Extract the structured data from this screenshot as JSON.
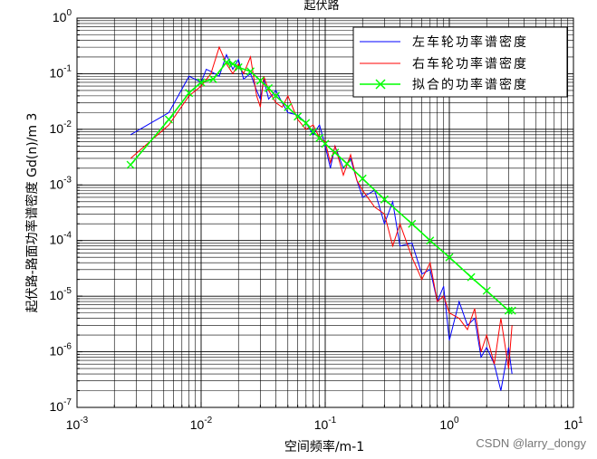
{
  "chart_data": {
    "type": "line",
    "title": "起伏路",
    "xlabel": "空间频率/m-1",
    "ylabel": "起伏路-路面功率谱密度 Gd(n)/m 3",
    "xscale": "log",
    "yscale": "log",
    "xlim": [
      0.001,
      10
    ],
    "ylim": [
      1e-07,
      1
    ],
    "grid": true,
    "legend_position": "top-right",
    "x_tick_labels": [
      {
        "base": "10",
        "exp": "-3"
      },
      {
        "base": "10",
        "exp": "-2"
      },
      {
        "base": "10",
        "exp": "-1"
      },
      {
        "base": "10",
        "exp": "0"
      },
      {
        "base": "10",
        "exp": "1"
      }
    ],
    "y_tick_labels": [
      {
        "base": "10",
        "exp": "0"
      },
      {
        "base": "10",
        "exp": "-1"
      },
      {
        "base": "10",
        "exp": "-2"
      },
      {
        "base": "10",
        "exp": "-3"
      },
      {
        "base": "10",
        "exp": "-4"
      },
      {
        "base": "10",
        "exp": "-5"
      },
      {
        "base": "10",
        "exp": "-6"
      },
      {
        "base": "10",
        "exp": "-7"
      }
    ],
    "series": [
      {
        "name": "左车轮功率谱密度",
        "color": "#0000ff",
        "x": [
          0.0027,
          0.0055,
          0.008,
          0.01,
          0.011,
          0.012,
          0.014,
          0.016,
          0.018,
          0.02,
          0.022,
          0.025,
          0.028,
          0.03,
          0.032,
          0.035,
          0.04,
          0.045,
          0.05,
          0.06,
          0.07,
          0.08,
          0.09,
          0.1,
          0.11,
          0.12,
          0.14,
          0.16,
          0.18,
          0.2,
          0.25,
          0.3,
          0.35,
          0.4,
          0.5,
          0.6,
          0.7,
          0.8,
          0.9,
          1.0,
          1.2,
          1.4,
          1.6,
          1.8,
          2.0,
          2.3,
          2.6,
          3.0,
          3.2
        ],
        "y": [
          0.008,
          0.02,
          0.09,
          0.07,
          0.12,
          0.11,
          0.09,
          0.22,
          0.12,
          0.18,
          0.08,
          0.1,
          0.05,
          0.035,
          0.08,
          0.035,
          0.05,
          0.03,
          0.02,
          0.018,
          0.013,
          0.008,
          0.012,
          0.005,
          0.002,
          0.005,
          0.002,
          0.003,
          0.0012,
          0.0006,
          0.0008,
          0.0002,
          0.0005,
          8e-05,
          9e-05,
          2.5e-05,
          3e-05,
          8e-06,
          1.5e-05,
          1.6e-06,
          8e-06,
          3e-06,
          4e-06,
          8e-07,
          1.2e-06,
          6e-07,
          2e-07,
          1.2e-06,
          4e-07
        ]
      },
      {
        "name": "右车轮功率谱密度",
        "color": "#ff0000",
        "x": [
          0.0027,
          0.0055,
          0.008,
          0.01,
          0.012,
          0.014,
          0.016,
          0.018,
          0.02,
          0.022,
          0.025,
          0.028,
          0.03,
          0.032,
          0.035,
          0.04,
          0.045,
          0.05,
          0.06,
          0.07,
          0.08,
          0.09,
          0.1,
          0.11,
          0.12,
          0.14,
          0.16,
          0.18,
          0.2,
          0.25,
          0.3,
          0.35,
          0.4,
          0.5,
          0.6,
          0.7,
          0.8,
          0.9,
          1.0,
          1.2,
          1.4,
          1.6,
          1.8,
          2.0,
          2.3,
          2.6,
          3.0,
          3.2
        ],
        "y": [
          0.003,
          0.012,
          0.04,
          0.06,
          0.1,
          0.3,
          0.15,
          0.1,
          0.15,
          0.1,
          0.2,
          0.04,
          0.025,
          0.09,
          0.05,
          0.03,
          0.025,
          0.04,
          0.015,
          0.01,
          0.012,
          0.007,
          0.006,
          0.0025,
          0.005,
          0.0015,
          0.0035,
          0.0012,
          0.0008,
          0.0004,
          0.0003,
          8e-05,
          0.0002,
          5e-05,
          2e-05,
          4e-05,
          8e-06,
          1e-05,
          5e-06,
          4e-06,
          2.5e-06,
          6e-06,
          1e-06,
          2e-06,
          6e-07,
          4e-06,
          5e-07,
          3e-06
        ]
      },
      {
        "name": "拟合的功率谱密度",
        "color": "#00ff00",
        "x": [
          0.0027,
          0.0055,
          0.008,
          0.01,
          0.0125,
          0.016,
          0.018,
          0.02,
          0.025,
          0.03,
          0.035,
          0.04,
          0.05,
          0.06,
          0.07,
          0.08,
          0.09,
          0.1,
          0.12,
          0.15,
          0.2,
          0.3,
          0.5,
          0.7,
          1.0,
          1.5,
          2.0,
          3.0,
          3.2
        ],
        "y": [
          0.0023,
          0.015,
          0.045,
          0.07,
          0.08,
          0.16,
          0.15,
          0.13,
          0.11,
          0.075,
          0.055,
          0.04,
          0.025,
          0.017,
          0.013,
          0.009,
          0.007,
          0.0055,
          0.0038,
          0.0024,
          0.0013,
          0.00055,
          0.0002,
          0.0001,
          5e-05,
          2.2e-05,
          1.25e-05,
          5.5e-06,
          5.5e-06
        ]
      }
    ]
  },
  "watermark": "CSDN @larry_dongy"
}
